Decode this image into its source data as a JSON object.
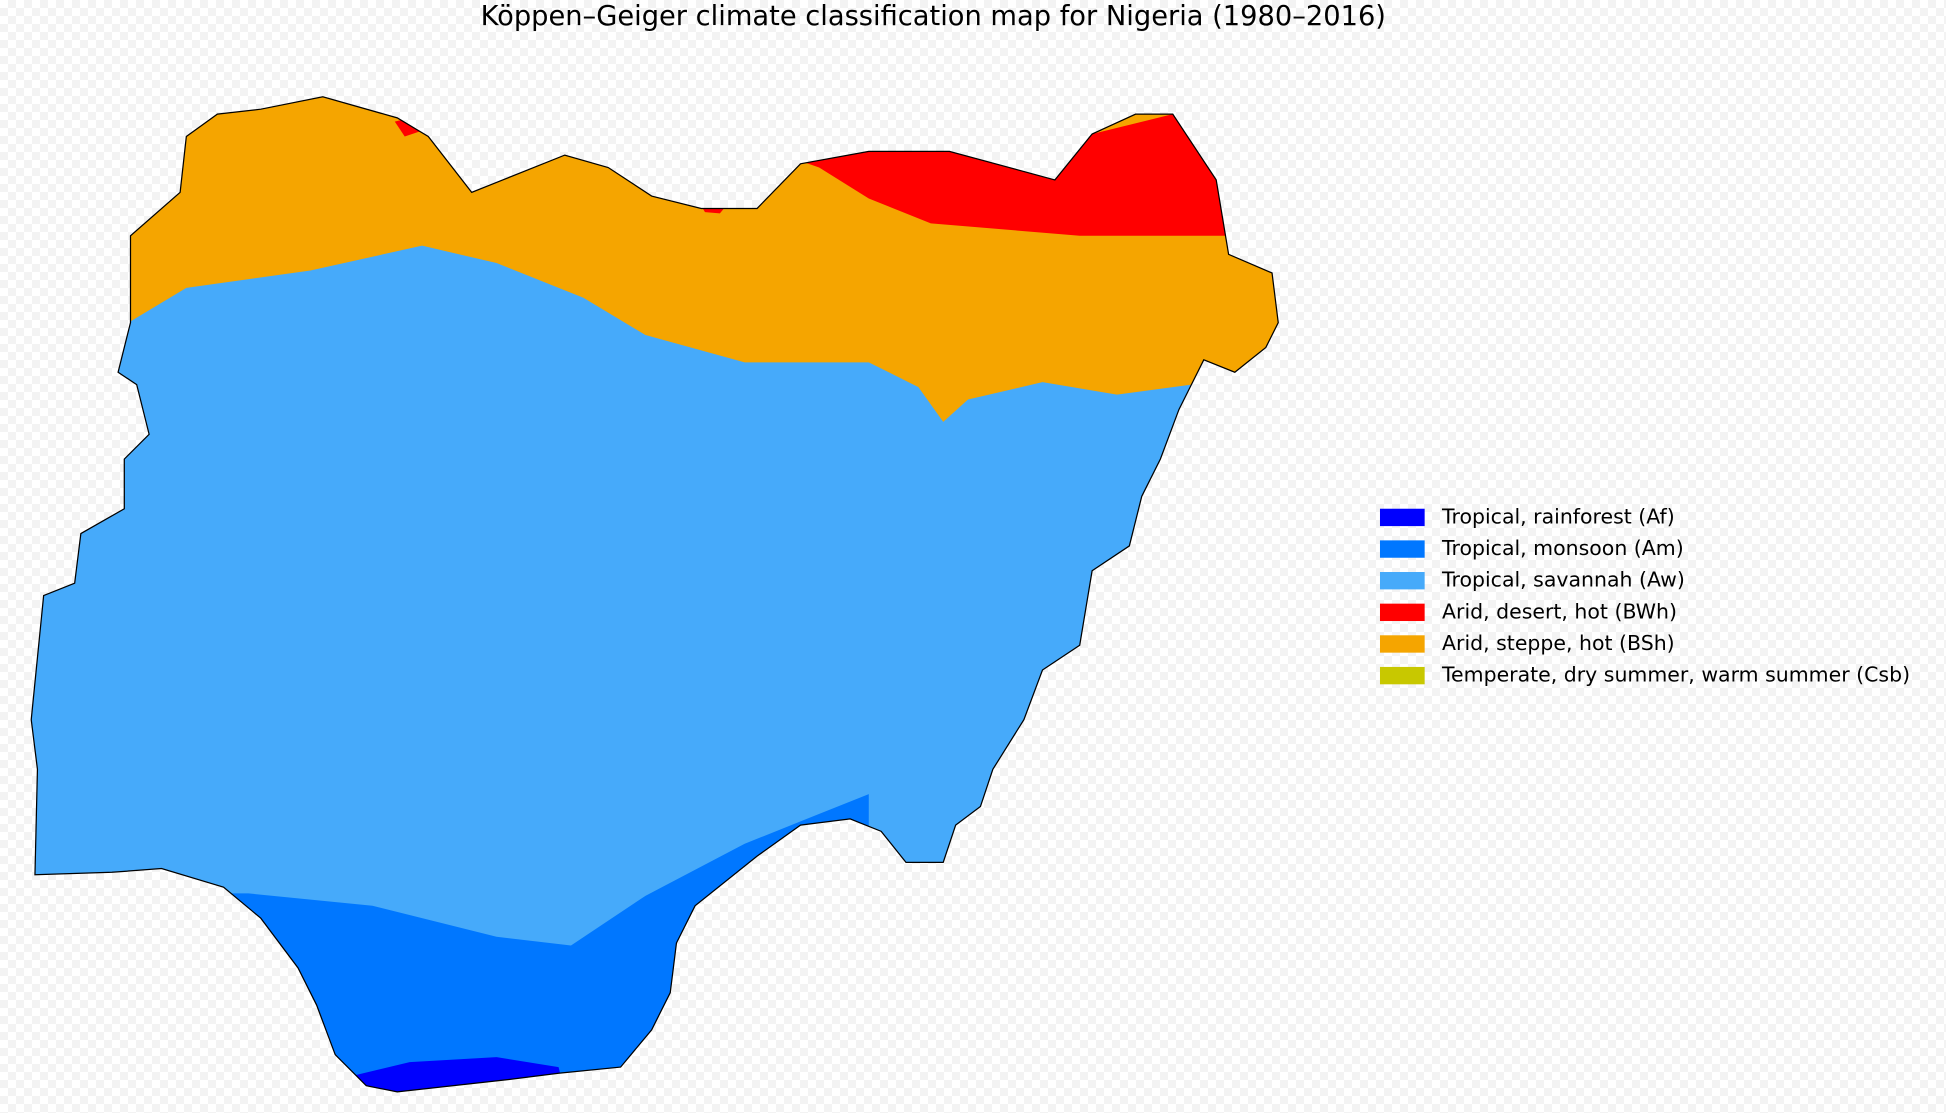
{
  "title": "Köppen–Geiger climate classification map for Nigeria (1980–2016)",
  "legend": [
    {
      "label": "Tropical, rainforest (Af)",
      "color": "#0000fe"
    },
    {
      "label": "Tropical, monsoon (Am)",
      "color": "#0077ff"
    },
    {
      "label": "Tropical, savannah (Aw)",
      "color": "#46aafa"
    },
    {
      "label": "Arid, desert, hot (BWh)",
      "color": "#ff0000"
    },
    {
      "label": "Arid, steppe, hot (BSh)",
      "color": "#f5a500"
    },
    {
      "label": "Temperate, dry summer, warm summer (Csb)",
      "color": "#c8c800"
    }
  ]
}
